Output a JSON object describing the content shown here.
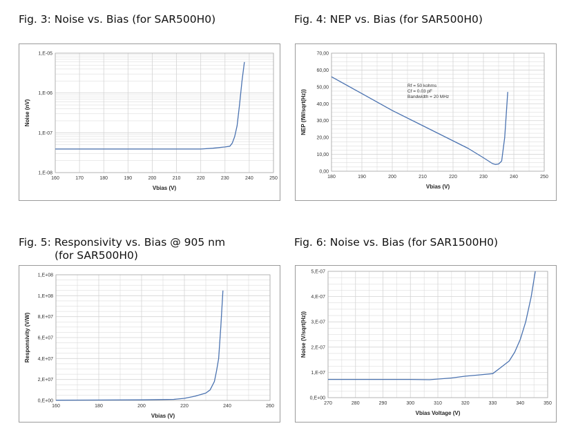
{
  "figures": [
    {
      "title": "Fig. 3: Noise vs. Bias (for SAR500H0)",
      "subtitle": ""
    },
    {
      "title": "Fig. 4: NEP vs. Bias (for SAR500H0)",
      "subtitle": ""
    },
    {
      "title": "Fig. 5: Responsivity vs. Bias @ 905 nm",
      "subtitle": "(for SAR500H0)"
    },
    {
      "title": "Fig. 6: Noise vs. Bias (for SAR1500H0)",
      "subtitle": ""
    }
  ],
  "colors": {
    "line": "#4a72b0",
    "grid": "#d4d4d4",
    "border": "#9a9a9a"
  },
  "chart_data": [
    {
      "type": "line",
      "title": "Fig. 3: Noise vs. Bias (for SAR500H0)",
      "xlabel": "Vbias (V)",
      "ylabel": "Noise (nV)",
      "xlim": [
        160,
        250
      ],
      "ylim": [
        1e-08,
        1e-05
      ],
      "yscale": "log",
      "grid": true,
      "xticks": [
        160,
        170,
        180,
        190,
        200,
        210,
        220,
        230,
        240,
        250
      ],
      "xtick_labels": [
        "160",
        "170",
        "180",
        "190",
        "200",
        "210",
        "220",
        "230",
        "240",
        "250"
      ],
      "yticks": [
        1e-08,
        1e-07,
        1e-06,
        1e-05
      ],
      "ytick_labels": [
        "1,E-08",
        "1,E-07",
        "1,E-06",
        "1,E-05"
      ],
      "x": [
        160,
        200,
        220,
        225,
        230,
        232,
        233,
        234,
        235,
        236,
        237,
        238
      ],
      "y": [
        3.9e-08,
        3.9e-08,
        3.9e-08,
        4.1e-08,
        4.4e-08,
        4.6e-08,
        5.5e-08,
        8e-08,
        1.5e-07,
        5e-07,
        2e-06,
        6e-06
      ]
    },
    {
      "type": "line",
      "title": "Fig. 4: NEP vs. Bias (for SAR500H0)",
      "xlabel": "Vbias (V)",
      "ylabel": "NEP (fW/sqrt(Hz))",
      "xlim": [
        180,
        250
      ],
      "ylim": [
        0,
        70
      ],
      "grid": true,
      "xticks": [
        180,
        190,
        200,
        210,
        220,
        230,
        240,
        250
      ],
      "xtick_labels": [
        "180",
        "190",
        "200",
        "210",
        "220",
        "230",
        "240",
        "250"
      ],
      "yticks": [
        0,
        10,
        20,
        30,
        40,
        50,
        60,
        70
      ],
      "ytick_labels": [
        "0,00",
        "10,00",
        "20,00",
        "30,00",
        "40,00",
        "50,00",
        "60,00",
        "70,00"
      ],
      "annotations": [
        "Rf = 50 kohms",
        "Cf = 0.03 pF",
        "Bandwidth = 20 MHz"
      ],
      "x": [
        180,
        190,
        200,
        210,
        220,
        225,
        230,
        233,
        234,
        235,
        236,
        237,
        238
      ],
      "y": [
        56,
        46,
        36,
        27,
        18,
        13.5,
        8,
        4.5,
        4,
        4.3,
        6,
        20,
        47
      ]
    },
    {
      "type": "line",
      "title": "Fig. 5: Responsivity vs. Bias @ 905 nm (for SAR500H0)",
      "xlabel": "Vbias (V)",
      "ylabel": "Responsivity (V/W)",
      "xlim": [
        160,
        260
      ],
      "ylim": [
        0,
        120000000
      ],
      "grid": true,
      "xticks": [
        160,
        180,
        200,
        220,
        240,
        260
      ],
      "xtick_labels": [
        "160",
        "180",
        "200",
        "220",
        "240",
        "260"
      ],
      "yticks": [
        0,
        20000000,
        40000000,
        60000000,
        80000000,
        100000000,
        120000000
      ],
      "ytick_labels": [
        "0,E+00",
        "2,E+07",
        "4,E+07",
        "6,E+07",
        "8,E+07",
        "1,E+08",
        "1,E+08"
      ],
      "x": [
        160,
        200,
        215,
        220,
        225,
        230,
        232,
        234,
        235,
        236,
        237,
        238
      ],
      "y": [
        200000,
        500000,
        1000000,
        2000000,
        4000000,
        7000000,
        10000000,
        18000000,
        28000000,
        40000000,
        70000000,
        105000000
      ]
    },
    {
      "type": "line",
      "title": "Fig. 6: Noise vs. Bias (for SAR1500H0)",
      "xlabel": "Vbias Voltage (V)",
      "ylabel": "Noise (V/sqrt(Hz))",
      "xlim": [
        270,
        350
      ],
      "ylim": [
        0,
        5e-07
      ],
      "grid": true,
      "xticks": [
        270,
        280,
        290,
        300,
        310,
        320,
        330,
        340,
        350
      ],
      "xtick_labels": [
        "270",
        "280",
        "290",
        "300",
        "310",
        "320",
        "330",
        "340",
        "350"
      ],
      "yticks": [
        0,
        1e-07,
        2e-07,
        3e-07,
        4e-07,
        5e-07
      ],
      "ytick_labels": [
        "0,E+00",
        "1,E-07",
        "2,E-07",
        "3,E-07",
        "4,E-07",
        "5,E-07"
      ],
      "x": [
        270,
        300,
        307,
        315,
        320,
        325,
        330,
        333,
        336,
        338,
        340,
        342,
        344,
        345.5
      ],
      "y": [
        7.2e-08,
        7.2e-08,
        7.1e-08,
        7.8e-08,
        8.5e-08,
        9e-08,
        9.5e-08,
        1.2e-07,
        1.45e-07,
        1.8e-07,
        2.3e-07,
        3e-07,
        4e-07,
        5e-07
      ]
    }
  ]
}
